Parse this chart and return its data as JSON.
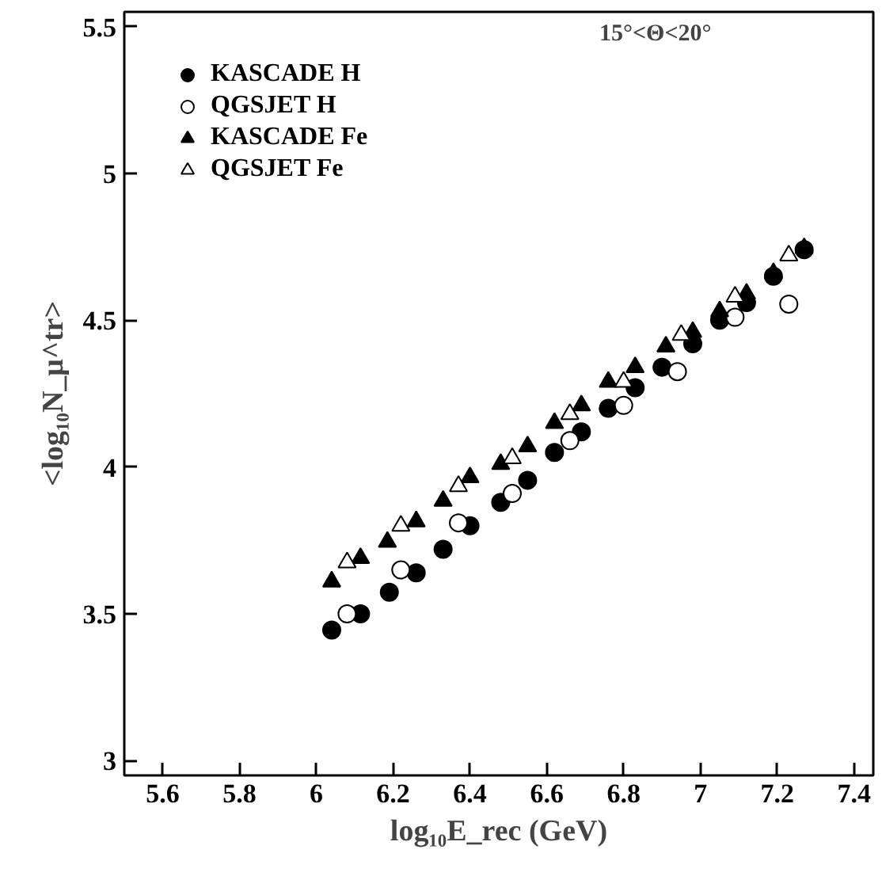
{
  "chart_data": {
    "type": "scatter",
    "annotations": [
      "15°<Θ<20°"
    ],
    "xlabel": "log₁₀E_rec (GeV)",
    "ylabel": "<log₁₀N_μ^tr>",
    "xlim": [
      5.5,
      7.45
    ],
    "ylim": [
      2.95,
      5.55
    ],
    "xticks": [
      5.6,
      5.8,
      6,
      6.2,
      6.4,
      6.6,
      6.8,
      7,
      7.2,
      7.4
    ],
    "yticks": [
      3,
      3.5,
      4,
      4.5,
      5,
      5.5
    ],
    "grid": false,
    "legend": "top left",
    "series": [
      {
        "name": "KASCADE H",
        "color": "#000000",
        "marker": "circle",
        "x": [
          6.04,
          6.115,
          6.19,
          6.26,
          6.33,
          6.4,
          6.48,
          6.55,
          6.62,
          6.69,
          6.76,
          6.83,
          6.9,
          6.98,
          7.05,
          7.12,
          7.19,
          7.27
        ],
        "values": [
          3.445,
          3.5,
          3.574,
          3.64,
          3.72,
          3.8,
          3.88,
          3.955,
          4.05,
          4.12,
          4.2,
          4.27,
          4.34,
          4.42,
          4.5,
          4.56,
          4.65,
          4.74
        ]
      },
      {
        "name": "QGSJET H",
        "color": "#000000",
        "marker": "circle_open",
        "x": [
          6.08,
          6.22,
          6.37,
          6.51,
          6.66,
          6.8,
          6.94,
          7.09,
          7.23
        ],
        "values": [
          3.5,
          3.65,
          3.81,
          3.91,
          4.09,
          4.21,
          4.325,
          4.51,
          4.555
        ]
      },
      {
        "name": "KASCADE Fe",
        "color": "#000000",
        "marker": "triangle",
        "x": [
          6.04,
          6.115,
          6.185,
          6.26,
          6.33,
          6.4,
          6.48,
          6.55,
          6.62,
          6.69,
          6.76,
          6.83,
          6.91,
          6.98,
          7.05,
          7.12,
          7.19,
          7.27
        ],
        "values": [
          3.61,
          3.69,
          3.745,
          3.815,
          3.885,
          3.965,
          4.01,
          4.07,
          4.15,
          4.21,
          4.29,
          4.34,
          4.41,
          4.46,
          4.53,
          4.59,
          4.66,
          4.745
        ]
      },
      {
        "name": "QGSJET Fe",
        "color": "#000000",
        "marker": "triangle_open",
        "x": [
          6.08,
          6.22,
          6.37,
          6.51,
          6.66,
          6.8,
          6.95,
          7.09,
          7.23
        ],
        "values": [
          3.675,
          3.8,
          3.935,
          4.03,
          4.18,
          4.29,
          4.45,
          4.58,
          4.72
        ]
      }
    ]
  }
}
